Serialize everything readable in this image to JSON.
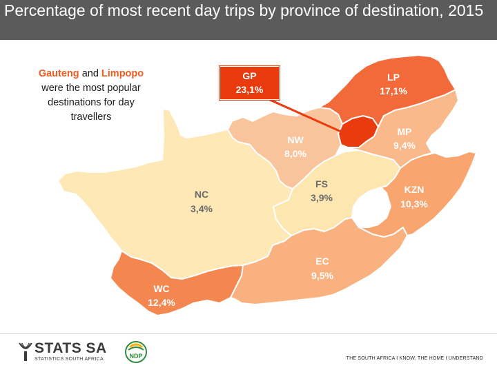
{
  "title": "Percentage of most recent day trips by province of destination, 2015",
  "callout": {
    "highlight1": "Gauteng",
    "text1": "and",
    "highlight2": "Limpopo",
    "text2": "were the most popular destinations for day travellers"
  },
  "provinces": [
    {
      "code": "GP",
      "value": "23,1%",
      "percent": 23.1,
      "color": "#ea3b0e"
    },
    {
      "code": "LP",
      "value": "17,1%",
      "percent": 17.1,
      "color": "#f26a3a"
    },
    {
      "code": "MP",
      "value": "9,4%",
      "percent": 9.4,
      "color": "#f9b98a"
    },
    {
      "code": "NW",
      "value": "8,0%",
      "percent": 8.0,
      "color": "#f9c39c"
    },
    {
      "code": "FS",
      "value": "3,9%",
      "percent": 3.9,
      "color": "#fde6b0"
    },
    {
      "code": "NC",
      "value": "3,4%",
      "percent": 3.4,
      "color": "#fde8b6"
    },
    {
      "code": "KZN",
      "value": "10,3%",
      "percent": 10.3,
      "color": "#f8a56f"
    },
    {
      "code": "EC",
      "value": "9,5%",
      "percent": 9.5,
      "color": "#f9b27f"
    },
    {
      "code": "WC",
      "value": "12,4%",
      "percent": 12.4,
      "color": "#f48650"
    }
  ],
  "footer": {
    "logo_name": "STATS SA",
    "logo_subtitle": "STATISTICS SOUTH AFRICA",
    "ndp_logo_text": "NDP",
    "tagline": "THE SOUTH AFRICA I KNOW, THE HOME I UNDERSTAND"
  },
  "colors": {
    "title_bar": "#5b5b5b",
    "highlight_text": "#f05a1e",
    "label_dark": "#6b6b6b",
    "label_light": "#ffffff"
  }
}
